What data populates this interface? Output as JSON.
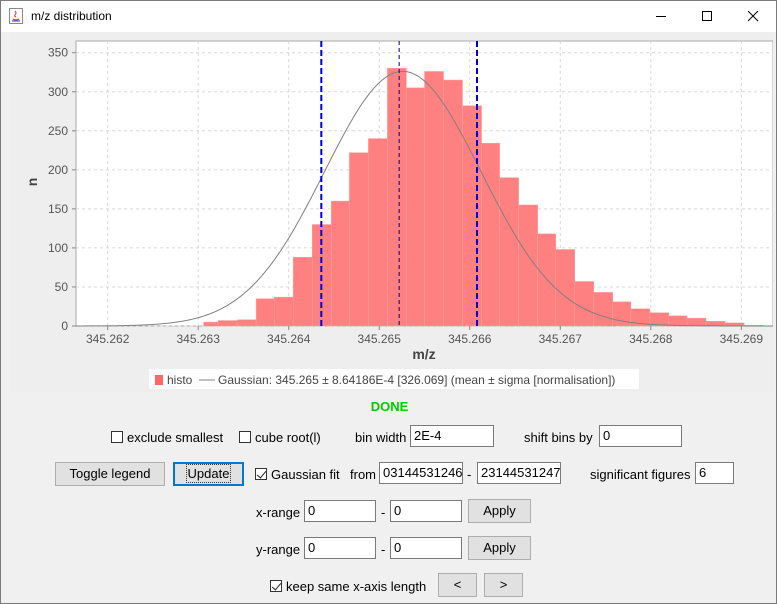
{
  "window": {
    "title": "m/z distribution"
  },
  "chart_data": {
    "type": "bar",
    "xlabel": "m/z",
    "ylabel": "n",
    "xlim": [
      345.26165,
      345.26935
    ],
    "ylim": [
      0,
      365
    ],
    "xticks": [
      "345.262",
      "345.263",
      "345.264",
      "345.265",
      "345.266",
      "345.267",
      "345.268",
      "345.269"
    ],
    "yticks": [
      "0",
      "50",
      "100",
      "150",
      "200",
      "250",
      "300",
      "350"
    ],
    "grid": true,
    "legend_position": "bottom",
    "bin_width": 0.0002,
    "series": [
      {
        "name": "histo",
        "color": "#ff8080",
        "bins": [
          [
            345.26306,
            345.26322,
            5
          ],
          [
            345.26322,
            345.26343,
            7
          ],
          [
            345.26343,
            345.26364,
            8
          ],
          [
            345.26364,
            345.26384,
            35
          ],
          [
            345.26384,
            345.26405,
            37
          ],
          [
            345.26405,
            345.26426,
            88
          ],
          [
            345.26426,
            345.26447,
            130
          ],
          [
            345.26447,
            345.26467,
            160
          ],
          [
            345.26467,
            345.26488,
            222
          ],
          [
            345.26488,
            345.26509,
            240
          ],
          [
            345.26509,
            345.2653,
            330
          ],
          [
            345.2653,
            345.2655,
            305
          ],
          [
            345.2655,
            345.26571,
            326
          ],
          [
            345.26571,
            345.26592,
            315
          ],
          [
            345.26592,
            345.26613,
            282
          ],
          [
            345.26613,
            345.26633,
            234
          ],
          [
            345.26633,
            345.26654,
            190
          ],
          [
            345.26654,
            345.26675,
            155
          ],
          [
            345.26675,
            345.26695,
            118
          ],
          [
            345.26695,
            345.26716,
            98
          ],
          [
            345.26716,
            345.26737,
            57
          ],
          [
            345.26737,
            345.26758,
            43
          ],
          [
            345.26758,
            345.26778,
            31
          ],
          [
            345.26778,
            345.26799,
            22
          ],
          [
            345.26799,
            345.2682,
            17
          ],
          [
            345.2682,
            345.2684,
            13
          ],
          [
            345.2684,
            345.26861,
            10
          ],
          [
            345.26861,
            345.26882,
            6
          ],
          [
            345.26882,
            345.26903,
            4
          ],
          [
            345.26903,
            345.26924,
            1
          ]
        ]
      },
      {
        "name": "Gaussian: 345.265 ± 8.64186E-4 [326.069] (mean ± sigma [normalisation])",
        "color": "#808080",
        "type": "line",
        "mean": 345.26526,
        "sigma": 0.000864186,
        "normalisation": 326.069
      }
    ],
    "vertical_lines": [
      {
        "x": 345.26436,
        "color": "#0000cc",
        "style": "dashed-thick"
      },
      {
        "x": 345.26522,
        "color": "#00008b",
        "style": "dashed-thin"
      },
      {
        "x": 345.26608,
        "color": "#0000cc",
        "style": "dashed-thick"
      }
    ],
    "legend": {
      "histo_label": "histo",
      "gaussian_label": "Gaussian: 345.265 ± 8.64186E-4 [326.069] (mean ± sigma [normalisation])"
    }
  },
  "status": {
    "text": "DONE",
    "color": "#00cc00"
  },
  "controls": {
    "exclude_smallest": {
      "label": "exclude smallest",
      "checked": false
    },
    "cube_root": {
      "label": "cube root(l)",
      "checked": false
    },
    "bin_width": {
      "label": "bin width",
      "value": "2E-4"
    },
    "shift_bins": {
      "label": "shift bins by",
      "value": "0"
    },
    "toggle_legend_label": "Toggle legend",
    "update_label": "Update",
    "gaussian_fit": {
      "label": "Gaussian fit",
      "checked": true
    },
    "from": {
      "label": "from",
      "value_from": "03144531246",
      "dash": "-",
      "value_to": "23144531247"
    },
    "significant_figures": {
      "label": "significant figures",
      "value": "6"
    },
    "x_range": {
      "label": "x-range",
      "min": "0",
      "dash": "-",
      "max": "0",
      "apply_label": "Apply"
    },
    "y_range": {
      "label": "y-range",
      "min": "0",
      "dash": "-",
      "max": "0",
      "apply_label": "Apply"
    },
    "keep_same_x": {
      "label": "keep same x-axis length",
      "checked": true
    },
    "prev_label": "<",
    "next_label": ">"
  }
}
